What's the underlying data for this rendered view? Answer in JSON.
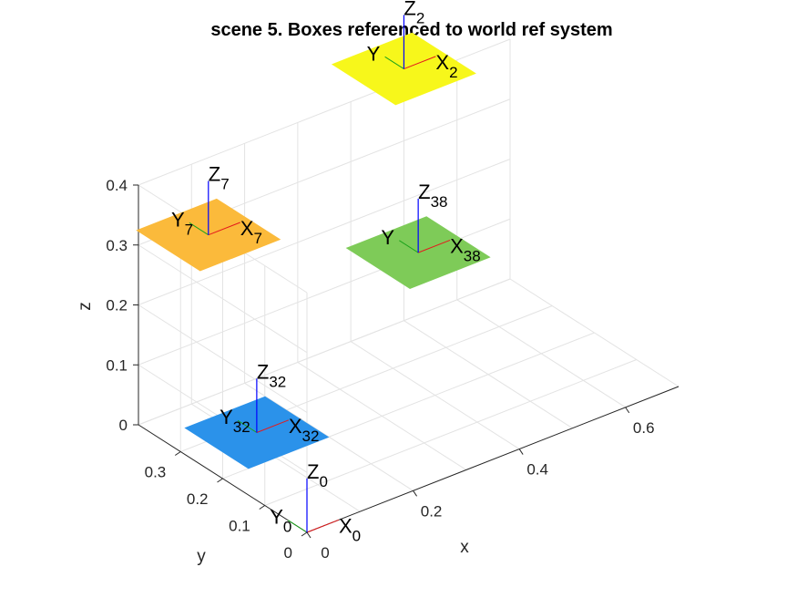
{
  "chart_data": {
    "type": "3d-scatter",
    "title": "scene 5. Boxes referenced to world ref system",
    "xlabel": "x",
    "ylabel": "y",
    "zlabel": "z",
    "xlim": [
      0,
      0.7
    ],
    "ylim": [
      0,
      0.4
    ],
    "zlim": [
      0,
      0.4
    ],
    "xticks": [
      "0",
      "0.2",
      "0.4",
      "0.6"
    ],
    "yticks": [
      "0",
      "0.1",
      "0.2",
      "0.3"
    ],
    "zticks": [
      "0",
      "0.1",
      "0.2",
      "0.3",
      "0.4"
    ],
    "grid": true,
    "axis_colors": {
      "x": "#e41a1c",
      "y": "#1aa31a",
      "z": "#0000ff"
    },
    "frames": [
      {
        "id": "0",
        "z_label": "Z",
        "z_sub": "0",
        "x_label": "X",
        "x_sub": "0",
        "y_label": "Y",
        "y_sub": "0",
        "x": 0.0,
        "y": 0.0,
        "z": 0.0
      },
      {
        "id": "32",
        "z_label": "Z",
        "z_sub": "32",
        "x_label": "X",
        "x_sub": "32",
        "y_label": "Y",
        "y_sub": "32",
        "x": 0.08,
        "y": 0.22,
        "z": 0.04,
        "box_color": "#2b92ea"
      },
      {
        "id": "7",
        "z_label": "Z",
        "z_sub": "7",
        "x_label": "X",
        "x_sub": "7",
        "y_label": "Y",
        "y_sub": "7",
        "x": 0.1,
        "y": 0.36,
        "z": 0.3,
        "box_color": "#fbba3b"
      },
      {
        "id": "38",
        "z_label": "Z",
        "z_sub": "38",
        "x_label": "X",
        "x_sub": "38",
        "y_label": "Y",
        "y_sub": "",
        "x": 0.4,
        "y": 0.24,
        "z": 0.22,
        "box_color": "#7ecb58"
      },
      {
        "id": "2",
        "z_label": "Z",
        "z_sub": "2",
        "x_label": "X",
        "x_sub": "2",
        "y_label": "Y",
        "y_sub": "",
        "x": 0.5,
        "y": 0.4,
        "z": 0.42,
        "box_color": "#f7f71b"
      }
    ]
  }
}
